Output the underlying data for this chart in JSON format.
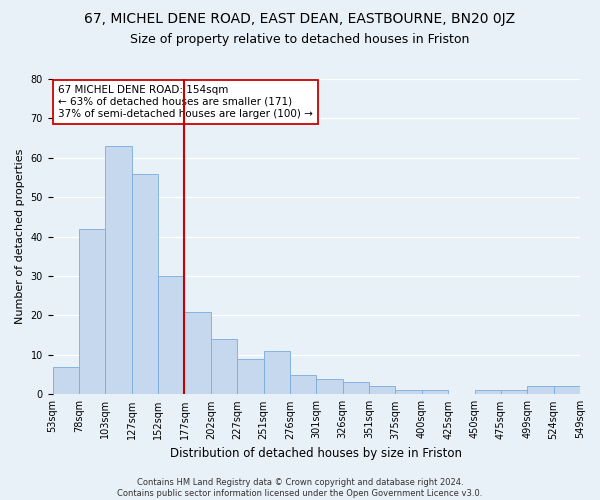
{
  "title1": "67, MICHEL DENE ROAD, EAST DEAN, EASTBOURNE, BN20 0JZ",
  "title2": "Size of property relative to detached houses in Friston",
  "xlabel": "Distribution of detached houses by size in Friston",
  "ylabel": "Number of detached properties",
  "bar_values": [
    7,
    42,
    63,
    56,
    30,
    21,
    14,
    9,
    11,
    5,
    4,
    3,
    2,
    1,
    1,
    0,
    1,
    1,
    2,
    2
  ],
  "bin_labels": [
    "53sqm",
    "78sqm",
    "103sqm",
    "127sqm",
    "152sqm",
    "177sqm",
    "202sqm",
    "227sqm",
    "251sqm",
    "276sqm",
    "301sqm",
    "326sqm",
    "351sqm",
    "375sqm",
    "400sqm",
    "425sqm",
    "450sqm",
    "475sqm",
    "499sqm",
    "524sqm",
    "549sqm"
  ],
  "bar_color": "#c5d8ed",
  "bar_edge_color": "#7aabe0",
  "vline_color": "#cc0000",
  "annotation_text": "67 MICHEL DENE ROAD: 154sqm\n← 63% of detached houses are smaller (171)\n37% of semi-detached houses are larger (100) →",
  "annotation_box_color": "#ffffff",
  "annotation_box_edge": "#cc0000",
  "ylim": [
    0,
    80
  ],
  "yticks": [
    0,
    10,
    20,
    30,
    40,
    50,
    60,
    70,
    80
  ],
  "footer": "Contains HM Land Registry data © Crown copyright and database right 2024.\nContains public sector information licensed under the Open Government Licence v3.0.",
  "bg_color": "#e8f0f8",
  "plot_bg_color": "#e8f0f8",
  "grid_color": "#ffffff",
  "title1_fontsize": 10,
  "title2_fontsize": 9,
  "xlabel_fontsize": 8.5,
  "ylabel_fontsize": 8,
  "tick_fontsize": 7,
  "annotation_fontsize": 7.5,
  "footer_fontsize": 6
}
